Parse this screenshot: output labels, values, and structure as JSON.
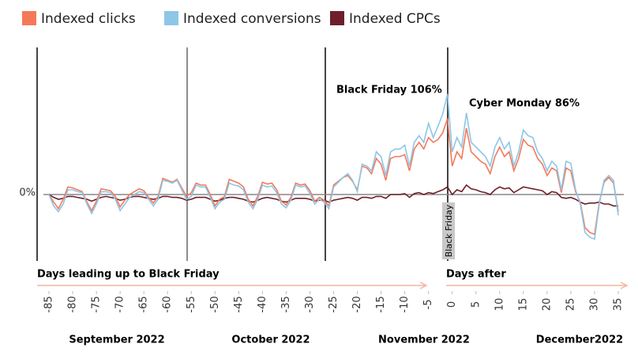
{
  "chart_data": {
    "type": "line",
    "series": [
      {
        "name": "Indexed clicks",
        "color": "#f4795b",
        "values": [
          0,
          -8,
          -15,
          -5,
          8,
          7,
          5,
          3,
          -8,
          -17,
          -7,
          6,
          5,
          4,
          -2,
          -13,
          -6,
          0,
          3,
          6,
          4,
          -3,
          -9,
          -2,
          17,
          15,
          13,
          16,
          7,
          -2,
          2,
          12,
          10,
          10,
          0,
          -12,
          -5,
          -2,
          16,
          14,
          12,
          8,
          -5,
          -12,
          -2,
          13,
          11,
          12,
          5,
          -7,
          -11,
          -3,
          12,
          10,
          11,
          4,
          -7,
          -3,
          -6,
          -12,
          10,
          14,
          18,
          20,
          14,
          5,
          30,
          28,
          22,
          38,
          32,
          15,
          38,
          40,
          40,
          42,
          25,
          48,
          55,
          48,
          60,
          55,
          58,
          65,
          80,
          30,
          45,
          38,
          70,
          45,
          40,
          35,
          32,
          22,
          40,
          50,
          40,
          45,
          25,
          38,
          58,
          52,
          50,
          38,
          32,
          20,
          28,
          25,
          2,
          28,
          25,
          3,
          -8,
          -35,
          -40,
          -42,
          -8,
          13,
          18,
          12,
          -18
        ]
      },
      {
        "name": "Indexed conversions",
        "color": "#8ec6e6",
        "values": [
          0,
          -12,
          -18,
          -10,
          5,
          5,
          3,
          2,
          -10,
          -20,
          -10,
          3,
          3,
          2,
          -5,
          -17,
          -10,
          -3,
          0,
          3,
          2,
          -5,
          -12,
          -5,
          15,
          14,
          12,
          15,
          5,
          -5,
          -2,
          10,
          8,
          8,
          -3,
          -15,
          -8,
          -5,
          12,
          10,
          9,
          5,
          -8,
          -15,
          -5,
          10,
          8,
          9,
          2,
          -10,
          -14,
          -6,
          10,
          8,
          9,
          1,
          -10,
          -5,
          -8,
          -15,
          8,
          13,
          18,
          22,
          15,
          3,
          32,
          30,
          25,
          45,
          40,
          20,
          45,
          48,
          48,
          52,
          30,
          55,
          62,
          55,
          75,
          60,
          72,
          85,
          106,
          45,
          60,
          50,
          86,
          55,
          50,
          45,
          40,
          30,
          50,
          60,
          48,
          55,
          30,
          45,
          68,
          62,
          60,
          45,
          38,
          25,
          35,
          30,
          5,
          35,
          33,
          5,
          -10,
          -40,
          -45,
          -47,
          -10,
          15,
          20,
          15,
          -22
        ]
      },
      {
        "name": "Indexed CPCs",
        "color": "#6e1f2b",
        "values": [
          0,
          -3,
          -5,
          -4,
          -2,
          -2,
          -3,
          -4,
          -5,
          -7,
          -5,
          -3,
          -2,
          -3,
          -4,
          -6,
          -5,
          -3,
          -2,
          -2,
          -3,
          -4,
          -5,
          -4,
          -2,
          -2,
          -3,
          -3,
          -4,
          -6,
          -5,
          -3,
          -3,
          -3,
          -5,
          -7,
          -6,
          -4,
          -3,
          -3,
          -4,
          -5,
          -7,
          -8,
          -6,
          -4,
          -3,
          -4,
          -5,
          -7,
          -8,
          -6,
          -4,
          -4,
          -4,
          -5,
          -7,
          -6,
          -6,
          -8,
          -6,
          -5,
          -4,
          -3,
          -4,
          -6,
          -3,
          -3,
          -4,
          -2,
          -2,
          -4,
          0,
          0,
          0,
          1,
          -3,
          1,
          2,
          0,
          2,
          1,
          3,
          5,
          8,
          0,
          5,
          3,
          10,
          6,
          5,
          3,
          2,
          0,
          5,
          8,
          6,
          7,
          2,
          5,
          8,
          7,
          6,
          5,
          4,
          0,
          3,
          2,
          -3,
          -4,
          -3,
          -5,
          -8,
          -10,
          -9,
          -9,
          -8,
          -10,
          -10,
          -12,
          -12
        ]
      }
    ],
    "x": [
      -85,
      -84,
      -83,
      -82,
      -81,
      -80,
      -79,
      -78,
      -77,
      -76,
      -75,
      -74,
      -73,
      -72,
      -71,
      -70,
      -69,
      -68,
      -67,
      -66,
      -65,
      -64,
      -63,
      -62,
      -61,
      -60,
      -59,
      -58,
      -57,
      -56,
      -55,
      -54,
      -53,
      -52,
      -51,
      -50,
      -49,
      -48,
      -47,
      -46,
      -45,
      -44,
      -43,
      -42,
      -41,
      -40,
      -39,
      -38,
      -37,
      -36,
      -35,
      -34,
      -33,
      -32,
      -31,
      -30,
      -29,
      -28,
      -27,
      -26,
      -25,
      -24,
      -23,
      -22,
      -21,
      -20,
      -19,
      -18,
      -17,
      -16,
      -15,
      -14,
      -13,
      -12,
      -11,
      -10,
      -9,
      -8,
      -7,
      -6,
      -5,
      -4,
      -3,
      -2,
      -1,
      0,
      1,
      2,
      3,
      4,
      5,
      6,
      7,
      8,
      9,
      10,
      11,
      12,
      13,
      14,
      15,
      16,
      17,
      18,
      19,
      20,
      21,
      22,
      23,
      24,
      25,
      26,
      27,
      28,
      29,
      30,
      31,
      32,
      33,
      34,
      35
    ],
    "xlim": [
      -85,
      35
    ],
    "xticks": [
      -85,
      -80,
      -75,
      -70,
      -65,
      -60,
      -55,
      -50,
      -45,
      -40,
      -35,
      -30,
      -25,
      -20,
      -15,
      -10,
      -5,
      0,
      5,
      10,
      15,
      20,
      25,
      30,
      35
    ],
    "ylim": [
      -70,
      155
    ],
    "yticks": [
      {
        "value": 0,
        "label": "0%"
      }
    ],
    "annotations": [
      "Black Friday 106%",
      "Cyber Monday 86%",
      "Black Friday",
      "Days leading up to Black Friday",
      "Days after"
    ],
    "months": [
      "September 2022",
      "October 2022",
      "November 2022",
      "December2022"
    ]
  }
}
